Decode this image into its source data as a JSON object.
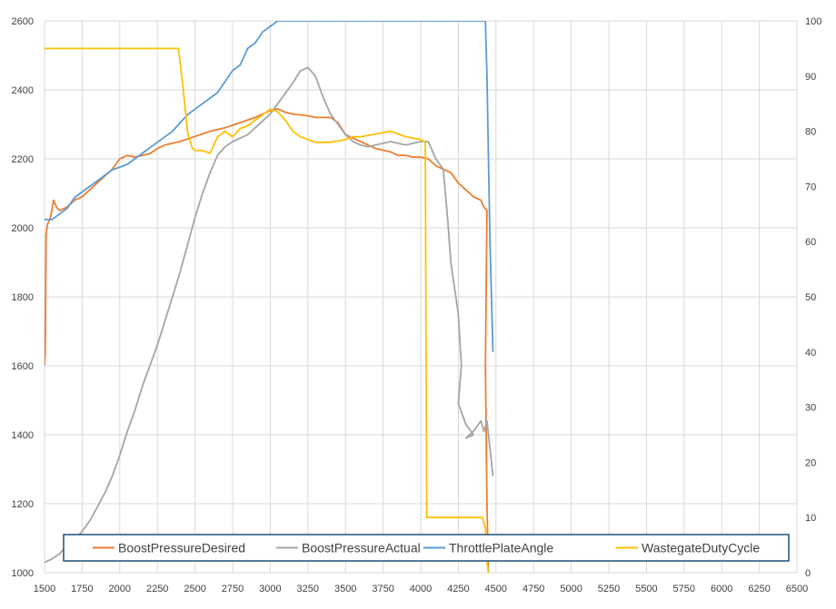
{
  "chart_data": {
    "type": "line",
    "title": "",
    "xlabel": "",
    "ylabel": "",
    "xlim": [
      1500,
      6500
    ],
    "ylim": [
      1000,
      2600
    ],
    "y2lim": [
      0,
      100
    ],
    "x_ticks": [
      "1500",
      "1750",
      "2000",
      "2250",
      "2500",
      "2750",
      "3000",
      "3250",
      "3500",
      "3750",
      "4000",
      "4250",
      "4500",
      "4750",
      "5000",
      "5250",
      "5500",
      "5750",
      "6000",
      "6250",
      "6500"
    ],
    "y_ticks": [
      "1000",
      "1200",
      "1400",
      "1600",
      "1800",
      "2000",
      "2200",
      "2400",
      "2600"
    ],
    "y2_ticks": [
      "0",
      "10",
      "20",
      "30",
      "40",
      "50",
      "60",
      "70",
      "80",
      "90",
      "100"
    ],
    "grid": true,
    "legend_position": "bottom",
    "series": [
      {
        "name": "BoostPressureDesired",
        "axis": "left",
        "color": "#ED7D31",
        "points": [
          [
            1500,
            1600
          ],
          [
            1505,
            1640
          ],
          [
            1510,
            1980
          ],
          [
            1520,
            2010
          ],
          [
            1540,
            2030
          ],
          [
            1560,
            2080
          ],
          [
            1580,
            2060
          ],
          [
            1600,
            2050
          ],
          [
            1650,
            2060
          ],
          [
            1700,
            2080
          ],
          [
            1750,
            2090
          ],
          [
            1800,
            2110
          ],
          [
            1850,
            2130
          ],
          [
            1900,
            2150
          ],
          [
            1950,
            2170
          ],
          [
            2000,
            2200
          ],
          [
            2050,
            2210
          ],
          [
            2100,
            2205
          ],
          [
            2150,
            2210
          ],
          [
            2200,
            2215
          ],
          [
            2250,
            2230
          ],
          [
            2300,
            2240
          ],
          [
            2400,
            2250
          ],
          [
            2500,
            2265
          ],
          [
            2600,
            2280
          ],
          [
            2700,
            2290
          ],
          [
            2800,
            2305
          ],
          [
            2900,
            2320
          ],
          [
            3000,
            2340
          ],
          [
            3050,
            2345
          ],
          [
            3100,
            2335
          ],
          [
            3150,
            2330
          ],
          [
            3250,
            2325
          ],
          [
            3300,
            2320
          ],
          [
            3400,
            2320
          ],
          [
            3450,
            2305
          ],
          [
            3500,
            2270
          ],
          [
            3550,
            2260
          ],
          [
            3600,
            2250
          ],
          [
            3650,
            2240
          ],
          [
            3700,
            2230
          ],
          [
            3750,
            2225
          ],
          [
            3800,
            2220
          ],
          [
            3850,
            2210
          ],
          [
            3900,
            2210
          ],
          [
            3950,
            2205
          ],
          [
            4000,
            2205
          ],
          [
            4050,
            2200
          ],
          [
            4100,
            2180
          ],
          [
            4150,
            2170
          ],
          [
            4200,
            2160
          ],
          [
            4250,
            2130
          ],
          [
            4300,
            2110
          ],
          [
            4350,
            2090
          ],
          [
            4400,
            2080
          ],
          [
            4420,
            2060
          ],
          [
            4440,
            2050
          ],
          [
            4430,
            1600
          ],
          [
            4440,
            1200
          ],
          [
            4450,
            1000
          ]
        ]
      },
      {
        "name": "BoostPressureActual",
        "axis": "left",
        "color": "#A5A5A5",
        "points": [
          [
            1500,
            1030
          ],
          [
            1550,
            1040
          ],
          [
            1600,
            1055
          ],
          [
            1650,
            1080
          ],
          [
            1700,
            1095
          ],
          [
            1750,
            1120
          ],
          [
            1800,
            1150
          ],
          [
            1850,
            1190
          ],
          [
            1900,
            1230
          ],
          [
            1950,
            1280
          ],
          [
            2000,
            1340
          ],
          [
            2050,
            1410
          ],
          [
            2100,
            1470
          ],
          [
            2150,
            1540
          ],
          [
            2200,
            1600
          ],
          [
            2250,
            1660
          ],
          [
            2300,
            1730
          ],
          [
            2350,
            1800
          ],
          [
            2400,
            1870
          ],
          [
            2450,
            1950
          ],
          [
            2500,
            2030
          ],
          [
            2550,
            2100
          ],
          [
            2600,
            2160
          ],
          [
            2650,
            2210
          ],
          [
            2700,
            2235
          ],
          [
            2750,
            2250
          ],
          [
            2800,
            2260
          ],
          [
            2850,
            2270
          ],
          [
            2900,
            2290
          ],
          [
            2950,
            2310
          ],
          [
            3000,
            2330
          ],
          [
            3050,
            2360
          ],
          [
            3100,
            2390
          ],
          [
            3150,
            2420
          ],
          [
            3200,
            2455
          ],
          [
            3250,
            2465
          ],
          [
            3300,
            2440
          ],
          [
            3350,
            2380
          ],
          [
            3400,
            2330
          ],
          [
            3450,
            2300
          ],
          [
            3500,
            2270
          ],
          [
            3550,
            2250
          ],
          [
            3600,
            2240
          ],
          [
            3650,
            2235
          ],
          [
            3700,
            2240
          ],
          [
            3750,
            2245
          ],
          [
            3800,
            2250
          ],
          [
            3850,
            2245
          ],
          [
            3900,
            2240
          ],
          [
            3950,
            2245
          ],
          [
            4000,
            2250
          ],
          [
            4050,
            2250
          ],
          [
            4100,
            2200
          ],
          [
            4150,
            2170
          ],
          [
            4180,
            2020
          ],
          [
            4200,
            1900
          ],
          [
            4250,
            1750
          ],
          [
            4270,
            1600
          ],
          [
            4250,
            1490
          ],
          [
            4300,
            1430
          ],
          [
            4350,
            1400
          ],
          [
            4300,
            1390
          ],
          [
            4350,
            1410
          ],
          [
            4400,
            1440
          ],
          [
            4420,
            1410
          ],
          [
            4440,
            1440
          ],
          [
            4460,
            1360
          ],
          [
            4480,
            1280
          ]
        ]
      },
      {
        "name": "ThrottlePlateAngle",
        "axis": "right",
        "color": "#5B9BD5",
        "points": [
          [
            1500,
            64
          ],
          [
            1550,
            64
          ],
          [
            1600,
            65
          ],
          [
            1650,
            66
          ],
          [
            1700,
            68
          ],
          [
            1750,
            69
          ],
          [
            1800,
            70
          ],
          [
            1850,
            71
          ],
          [
            1900,
            72
          ],
          [
            1950,
            73
          ],
          [
            2000,
            73.5
          ],
          [
            2050,
            74
          ],
          [
            2100,
            75
          ],
          [
            2150,
            76
          ],
          [
            2200,
            77
          ],
          [
            2250,
            78
          ],
          [
            2300,
            79
          ],
          [
            2350,
            80
          ],
          [
            2400,
            81.5
          ],
          [
            2450,
            83
          ],
          [
            2500,
            84
          ],
          [
            2550,
            85
          ],
          [
            2600,
            86
          ],
          [
            2650,
            87
          ],
          [
            2700,
            89
          ],
          [
            2750,
            91
          ],
          [
            2800,
            92
          ],
          [
            2850,
            95
          ],
          [
            2900,
            96
          ],
          [
            2950,
            98
          ],
          [
            3000,
            99
          ],
          [
            3050,
            100
          ],
          [
            3500,
            100
          ],
          [
            4000,
            100
          ],
          [
            4300,
            100
          ],
          [
            4400,
            100
          ],
          [
            4430,
            100
          ],
          [
            4440,
            90
          ],
          [
            4460,
            60
          ],
          [
            4480,
            40
          ]
        ]
      },
      {
        "name": "WastegateDutyCycle",
        "axis": "right",
        "color": "#FFC000",
        "points": [
          [
            1500,
            95
          ],
          [
            1750,
            95
          ],
          [
            2000,
            95
          ],
          [
            2250,
            95
          ],
          [
            2390,
            95
          ],
          [
            2420,
            88
          ],
          [
            2450,
            80
          ],
          [
            2480,
            77
          ],
          [
            2500,
            76.5
          ],
          [
            2550,
            76.5
          ],
          [
            2600,
            76
          ],
          [
            2650,
            79
          ],
          [
            2700,
            80
          ],
          [
            2750,
            79
          ],
          [
            2800,
            80.5
          ],
          [
            2850,
            81
          ],
          [
            2900,
            82
          ],
          [
            2950,
            83
          ],
          [
            3000,
            84
          ],
          [
            3050,
            83.5
          ],
          [
            3100,
            82
          ],
          [
            3150,
            80
          ],
          [
            3200,
            79
          ],
          [
            3300,
            78
          ],
          [
            3400,
            78
          ],
          [
            3500,
            78.5
          ],
          [
            3550,
            79
          ],
          [
            3600,
            79
          ],
          [
            3700,
            79.5
          ],
          [
            3800,
            80
          ],
          [
            3900,
            79
          ],
          [
            4000,
            78.5
          ],
          [
            4030,
            78
          ],
          [
            4040,
            10
          ],
          [
            4100,
            10
          ],
          [
            4200,
            10
          ],
          [
            4300,
            10
          ],
          [
            4400,
            10
          ],
          [
            4410,
            10
          ],
          [
            4430,
            8
          ],
          [
            4440,
            2
          ],
          [
            4450,
            0
          ]
        ]
      }
    ]
  }
}
